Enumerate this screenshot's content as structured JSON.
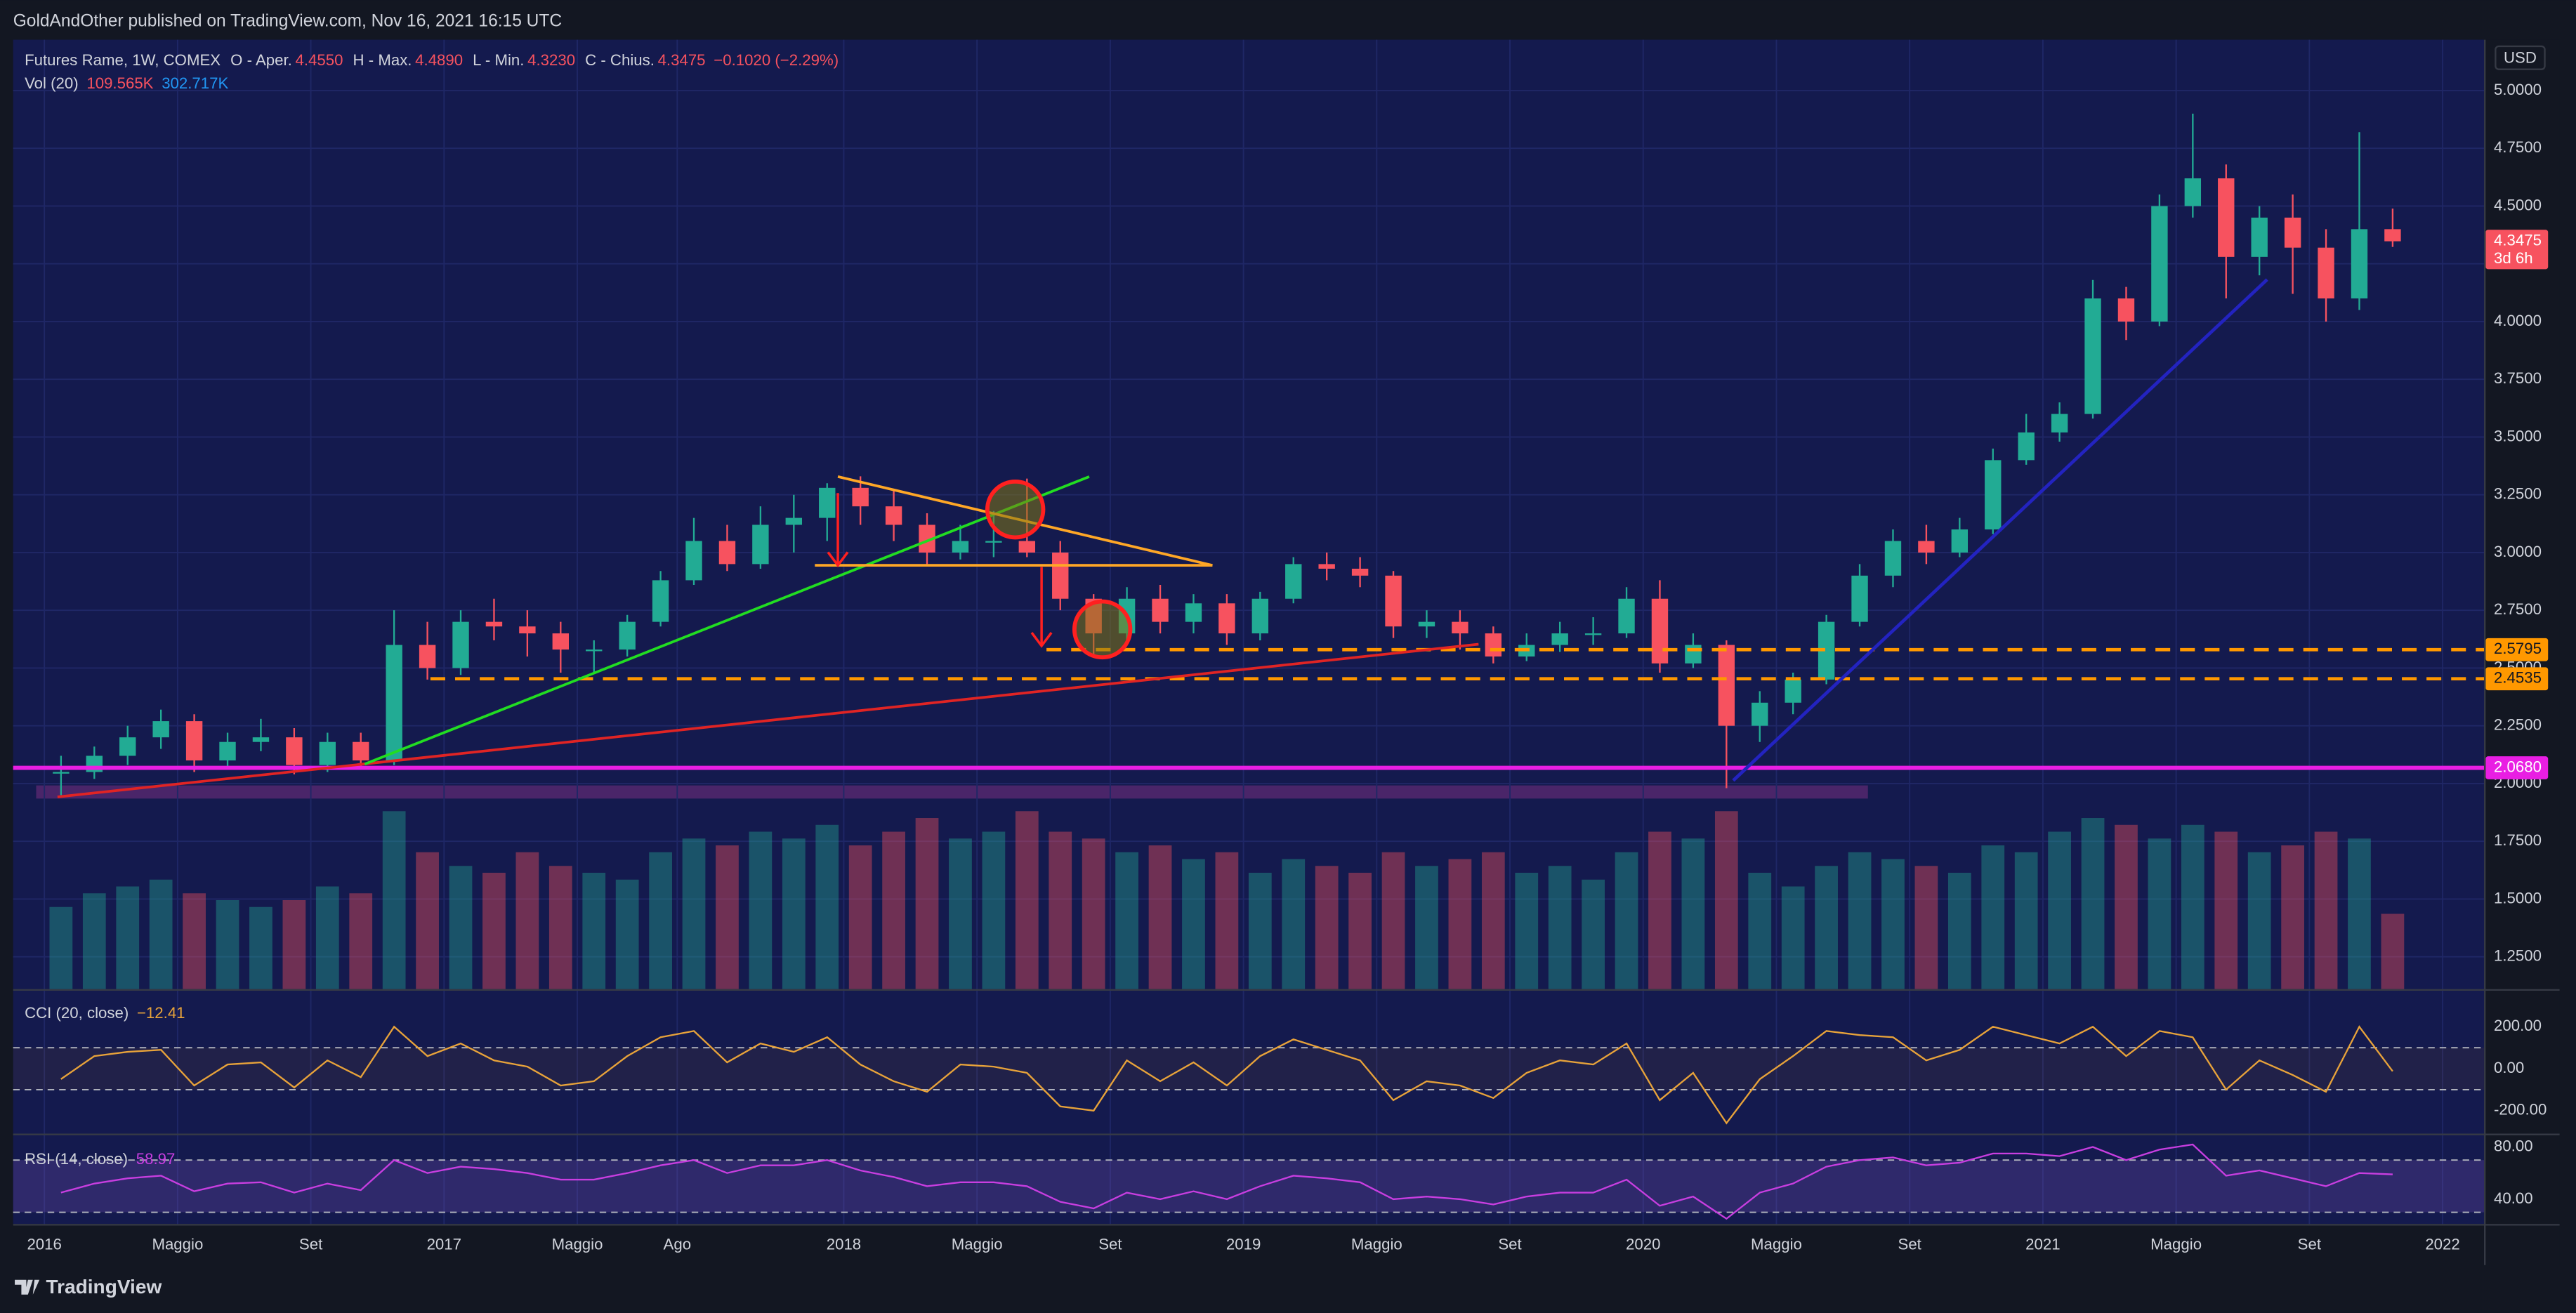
{
  "header": {
    "publisher": "GoldAndOther published on TradingView.com, Nov 16, 2021 16:15 UTC"
  },
  "footer": {
    "brand": "TradingView"
  },
  "chart_data": [
    {
      "type": "candlestick",
      "y_unit": "USD",
      "legend": {
        "symbol": "Futures Rame, 1W, COMEX",
        "items": [
          {
            "label": "O - Aper.",
            "value": "4.4550"
          },
          {
            "label": "H - Max.",
            "value": "4.4890"
          },
          {
            "label": "L - Min.",
            "value": "4.3230"
          },
          {
            "label": "C - Chius.",
            "value": "4.3475"
          }
        ],
        "change": "−0.1020 (−2.29%)"
      },
      "x": [
        "2016-01",
        "2016-02",
        "2016-03",
        "2016-04",
        "2016-05",
        "2016-06",
        "2016-07",
        "2016-08",
        "2016-09",
        "2016-10",
        "2016-11",
        "2016-12",
        "2017-01",
        "2017-02",
        "2017-03",
        "2017-04",
        "2017-05",
        "2017-06",
        "2017-07",
        "2017-08",
        "2017-09",
        "2017-10",
        "2017-11",
        "2017-12",
        "2018-01",
        "2018-02",
        "2018-03",
        "2018-04",
        "2018-05",
        "2018-06",
        "2018-07",
        "2018-08",
        "2018-09",
        "2018-10",
        "2018-11",
        "2018-12",
        "2019-01",
        "2019-02",
        "2019-03",
        "2019-04",
        "2019-05",
        "2019-06",
        "2019-07",
        "2019-08",
        "2019-09",
        "2019-10",
        "2019-11",
        "2019-12",
        "2020-01",
        "2020-02",
        "2020-03",
        "2020-04",
        "2020-05",
        "2020-06",
        "2020-07",
        "2020-08",
        "2020-09",
        "2020-10",
        "2020-11",
        "2020-12",
        "2021-01",
        "2021-02",
        "2021-03",
        "2021-04",
        "2021-05",
        "2021-06",
        "2021-07",
        "2021-08",
        "2021-09",
        "2021-10",
        "2021-11"
      ],
      "close": [
        2.05,
        2.12,
        2.2,
        2.27,
        2.1,
        2.18,
        2.2,
        2.08,
        2.18,
        2.1,
        2.6,
        2.5,
        2.7,
        2.68,
        2.65,
        2.58,
        2.58,
        2.7,
        2.88,
        3.05,
        2.95,
        3.12,
        3.15,
        3.28,
        3.2,
        3.12,
        3.0,
        3.05,
        3.05,
        3.0,
        2.8,
        2.65,
        2.8,
        2.7,
        2.78,
        2.65,
        2.8,
        2.95,
        2.93,
        2.9,
        2.68,
        2.7,
        2.65,
        2.55,
        2.6,
        2.65,
        2.65,
        2.8,
        2.52,
        2.6,
        2.25,
        2.35,
        2.45,
        2.7,
        2.9,
        3.05,
        3.0,
        3.1,
        3.4,
        3.52,
        3.6,
        4.1,
        4.0,
        4.5,
        4.62,
        4.28,
        4.45,
        4.32,
        4.1,
        4.4,
        4.3475
      ],
      "high": [
        2.12,
        2.16,
        2.25,
        2.32,
        2.3,
        2.22,
        2.28,
        2.24,
        2.22,
        2.22,
        2.75,
        2.7,
        2.75,
        2.8,
        2.75,
        2.7,
        2.62,
        2.73,
        2.92,
        3.15,
        3.12,
        3.2,
        3.25,
        3.3,
        3.33,
        3.27,
        3.17,
        3.12,
        3.18,
        3.32,
        3.05,
        2.82,
        2.85,
        2.86,
        2.82,
        2.82,
        2.83,
        2.98,
        3.0,
        2.98,
        2.92,
        2.75,
        2.75,
        2.68,
        2.65,
        2.7,
        2.72,
        2.85,
        2.88,
        2.65,
        2.62,
        2.4,
        2.48,
        2.73,
        2.95,
        3.1,
        3.12,
        3.15,
        3.45,
        3.6,
        3.65,
        4.18,
        4.15,
        4.55,
        4.9,
        4.68,
        4.5,
        4.55,
        4.4,
        4.82,
        4.489
      ],
      "low": [
        1.95,
        2.02,
        2.08,
        2.15,
        2.05,
        2.06,
        2.14,
        2.04,
        2.05,
        2.07,
        2.08,
        2.45,
        2.47,
        2.62,
        2.55,
        2.48,
        2.48,
        2.55,
        2.68,
        2.86,
        2.92,
        2.93,
        3.0,
        3.05,
        3.12,
        3.05,
        2.95,
        2.97,
        2.98,
        2.98,
        2.75,
        2.55,
        2.62,
        2.65,
        2.65,
        2.6,
        2.62,
        2.78,
        2.88,
        2.85,
        2.63,
        2.63,
        2.58,
        2.52,
        2.53,
        2.57,
        2.6,
        2.63,
        2.48,
        2.5,
        1.98,
        2.18,
        2.3,
        2.43,
        2.68,
        2.85,
        2.95,
        2.98,
        3.08,
        3.38,
        3.48,
        3.58,
        3.92,
        3.98,
        4.45,
        4.1,
        4.2,
        4.12,
        4.0,
        4.05,
        4.323
      ],
      "ylim": [
        1.11,
        5.22
      ],
      "yticks": [
        {
          "value": 1.25,
          "label": "1.2500"
        },
        {
          "value": 1.5,
          "label": "1.5000"
        },
        {
          "value": 1.75,
          "label": "1.7500"
        },
        {
          "value": 2,
          "label": "2.0000"
        },
        {
          "value": 2.25,
          "label": "2.2500"
        },
        {
          "value": 2.5,
          "label": "2.5000"
        },
        {
          "value": 2.75,
          "label": "2.7500"
        },
        {
          "value": 3,
          "label": "3.0000"
        },
        {
          "value": 3.25,
          "label": "3.2500"
        },
        {
          "value": 3.5,
          "label": "3.5000"
        },
        {
          "value": 3.75,
          "label": "3.7500"
        },
        {
          "value": 4,
          "label": "4.0000"
        },
        {
          "value": 4.25,
          "label": "4.2500"
        },
        {
          "value": 4.5,
          "label": "4.5000"
        },
        {
          "value": 4.75,
          "label": "4.7500"
        },
        {
          "value": 5,
          "label": "5.0000"
        }
      ],
      "xticks": [
        {
          "value": "2016-01",
          "label": "2016"
        },
        {
          "value": "2016-05",
          "label": "Maggio"
        },
        {
          "value": "2016-09",
          "label": "Set"
        },
        {
          "value": "2017-01",
          "label": "2017"
        },
        {
          "value": "2017-05",
          "label": "Maggio"
        },
        {
          "value": "2017-08",
          "label": "Ago"
        },
        {
          "value": "2018-01",
          "label": "2018"
        },
        {
          "value": "2018-05",
          "label": "Maggio"
        },
        {
          "value": "2018-09",
          "label": "Set"
        },
        {
          "value": "2019-01",
          "label": "2019"
        },
        {
          "value": "2019-05",
          "label": "Maggio"
        },
        {
          "value": "2019-09",
          "label": "Set"
        },
        {
          "value": "2020-01",
          "label": "2020"
        },
        {
          "value": "2020-05",
          "label": "Maggio"
        },
        {
          "value": "2020-09",
          "label": "Set"
        },
        {
          "value": "2021-01",
          "label": "2021"
        },
        {
          "value": "2021-05",
          "label": "Maggio"
        },
        {
          "value": "2021-09",
          "label": "Set"
        },
        {
          "value": "2022-01",
          "label": "2022"
        }
      ],
      "up_color": "#22ab94",
      "down_color": "#f7525f",
      "price_labels": [
        {
          "value": 4.3475,
          "label": "4.3475",
          "note": "3d 6h",
          "color": "#f7525f"
        },
        {
          "value": 2.5795,
          "label": "2.5795",
          "color": "#ff9800"
        },
        {
          "value": 2.4535,
          "label": "2.4535",
          "color": "#ff9800"
        },
        {
          "value": 2.068,
          "label": "2.0680",
          "color": "#e91ee3"
        }
      ]
    },
    {
      "type": "bar",
      "title": "Vol (20)",
      "legend_values": [
        "109.565K",
        "302.717K"
      ],
      "values": [
        120,
        140,
        150,
        160,
        140,
        130,
        120,
        130,
        150,
        140,
        260,
        200,
        180,
        170,
        200,
        180,
        170,
        160,
        200,
        220,
        210,
        230,
        220,
        240,
        210,
        230,
        250,
        220,
        230,
        260,
        230,
        220,
        200,
        210,
        190,
        200,
        170,
        190,
        180,
        170,
        200,
        180,
        190,
        200,
        170,
        180,
        160,
        200,
        230,
        220,
        260,
        170,
        150,
        180,
        200,
        190,
        180,
        170,
        210,
        200,
        230,
        250,
        240,
        220,
        240,
        230,
        200,
        210,
        230,
        220,
        110
      ],
      "ylim": [
        0,
        300
      ]
    },
    {
      "type": "line",
      "title": "CCI (20, close)",
      "legend_value": "−12.41",
      "color": "#e8a33a",
      "values": [
        -50,
        60,
        80,
        90,
        -80,
        20,
        30,
        -90,
        40,
        -40,
        200,
        60,
        120,
        40,
        10,
        -80,
        -60,
        60,
        150,
        180,
        30,
        120,
        80,
        150,
        20,
        -60,
        -110,
        20,
        10,
        -20,
        -180,
        -200,
        40,
        -60,
        30,
        -80,
        60,
        140,
        90,
        40,
        -150,
        -60,
        -80,
        -140,
        -20,
        40,
        20,
        120,
        -150,
        -20,
        -260,
        -50,
        60,
        180,
        160,
        150,
        40,
        90,
        200,
        160,
        120,
        200,
        60,
        180,
        150,
        -100,
        40,
        -30,
        -110,
        200,
        -12.41
      ],
      "ylim": [
        -310,
        372
      ],
      "yticks": [
        {
          "value": -200,
          "label": "-200.00"
        },
        {
          "value": 0,
          "label": "0.00"
        },
        {
          "value": 200,
          "label": "200.00"
        }
      ],
      "bands": [
        -100,
        100
      ]
    },
    {
      "type": "line",
      "title": "RSI (14, close)",
      "legend_value": "58.97",
      "color": "#c83ee0",
      "values": [
        45,
        52,
        56,
        58,
        46,
        52,
        53,
        45,
        52,
        47,
        70,
        60,
        65,
        63,
        60,
        55,
        55,
        60,
        66,
        70,
        60,
        66,
        66,
        70,
        62,
        57,
        50,
        53,
        53,
        50,
        38,
        33,
        45,
        40,
        46,
        40,
        50,
        58,
        56,
        53,
        40,
        42,
        40,
        36,
        42,
        45,
        45,
        55,
        35,
        42,
        25,
        45,
        52,
        65,
        70,
        72,
        66,
        68,
        75,
        75,
        73,
        80,
        70,
        78,
        82,
        58,
        62,
        56,
        50,
        60,
        58.97
      ],
      "ylim": [
        21,
        89
      ],
      "yticks": [
        {
          "value": 40,
          "label": "40.00"
        },
        {
          "value": 80,
          "label": "80.00"
        }
      ],
      "bands": [
        30,
        70
      ]
    }
  ]
}
